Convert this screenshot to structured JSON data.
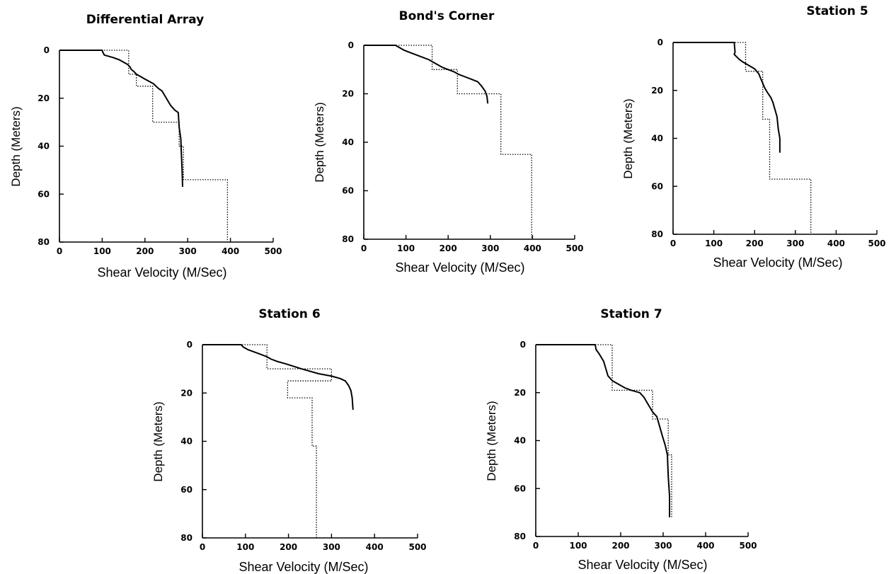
{
  "chart_data": [
    {
      "type": "line",
      "title": "Differential Array",
      "xlabel": "Shear Velocity (M/Sec)",
      "ylabel": "Depth (Meters)",
      "xlim": [
        0,
        500
      ],
      "ylim": [
        80,
        0
      ],
      "y_inverted": true,
      "xticks": [
        "0",
        "100",
        "200",
        "300",
        "400",
        "500"
      ],
      "yticks": [
        "0",
        "20",
        "40",
        "60",
        "80"
      ],
      "series": [
        {
          "style": "solid",
          "x": [
            0,
            100,
            102,
            105,
            125,
            140,
            150,
            160,
            165,
            168,
            175,
            180,
            190,
            200,
            210,
            220,
            232,
            240,
            250,
            260,
            270,
            278,
            280,
            284,
            285,
            287,
            288
          ],
          "y": [
            0,
            0,
            1,
            2,
            3,
            4,
            5,
            6,
            7,
            8,
            9,
            10,
            11,
            12,
            13,
            14,
            16,
            17,
            20,
            23,
            25,
            26,
            32,
            37,
            42,
            50,
            57
          ]
        },
        {
          "style": "dotted",
          "x": [
            0,
            162,
            162,
            180,
            180,
            218,
            218,
            280,
            280,
            290,
            290,
            393,
            393
          ],
          "y": [
            0,
            0,
            10,
            10,
            15,
            15,
            30,
            30,
            40,
            40,
            54,
            54,
            80
          ]
        }
      ]
    },
    {
      "type": "line",
      "title": "Bond's Corner",
      "xlabel": "Shear Velocity (M/Sec)",
      "ylabel": "Depth (Meters)",
      "xlim": [
        0,
        500
      ],
      "ylim": [
        80,
        0
      ],
      "y_inverted": true,
      "xticks": [
        "0",
        "100",
        "200",
        "300",
        "400",
        "500"
      ],
      "yticks": [
        "0",
        "20",
        "40",
        "60",
        "80"
      ],
      "series": [
        {
          "style": "solid",
          "x": [
            0,
            75,
            85,
            95,
            110,
            125,
            140,
            155,
            165,
            175,
            185,
            200,
            215,
            225,
            240,
            255,
            270,
            280,
            288,
            292,
            294
          ],
          "y": [
            0,
            0,
            1,
            2,
            3,
            4,
            5,
            6,
            7,
            8,
            9,
            10,
            11,
            12,
            13,
            14,
            15,
            17,
            19,
            21,
            24
          ]
        },
        {
          "style": "dotted",
          "x": [
            0,
            162,
            162,
            222,
            222,
            325,
            325,
            398,
            398
          ],
          "y": [
            0,
            0,
            10,
            10,
            20,
            20,
            45,
            45,
            80
          ]
        }
      ]
    },
    {
      "type": "line",
      "title": "Station 5",
      "xlabel": "Shear Velocity (M/Sec)",
      "ylabel": "Depth (Meters)",
      "xlim": [
        0,
        500
      ],
      "ylim": [
        80,
        0
      ],
      "y_inverted": true,
      "xticks": [
        "0",
        "100",
        "200",
        "300",
        "400",
        "500"
      ],
      "yticks": [
        "0",
        "20",
        "40",
        "60",
        "80"
      ],
      "series": [
        {
          "style": "solid",
          "x": [
            0,
            150,
            152,
            150,
            156,
            162,
            170,
            180,
            190,
            200,
            210,
            215,
            220,
            225,
            232,
            240,
            245,
            250,
            255,
            258,
            262,
            262
          ],
          "y": [
            0,
            0,
            4,
            5,
            6,
            7,
            8,
            9,
            10,
            11,
            13,
            15,
            17,
            19,
            21,
            23,
            25,
            28,
            31,
            36,
            40,
            46
          ]
        },
        {
          "style": "dotted",
          "x": [
            0,
            178,
            178,
            220,
            220,
            237,
            237,
            265,
            265,
            338,
            338
          ],
          "y": [
            0,
            0,
            12,
            12,
            32,
            32,
            57,
            57,
            57,
            57,
            80
          ]
        }
      ]
    },
    {
      "type": "line",
      "title": "Station 6",
      "xlabel": "Shear Velocity (M/Sec)",
      "ylabel": "Depth (Meters)",
      "xlim": [
        0,
        500
      ],
      "ylim": [
        80,
        0
      ],
      "y_inverted": true,
      "xticks": [
        "0",
        "100",
        "200",
        "300",
        "400",
        "500"
      ],
      "yticks": [
        "0",
        "20",
        "40",
        "60",
        "80"
      ],
      "series": [
        {
          "style": "solid",
          "x": [
            0,
            90,
            95,
            105,
            120,
            135,
            150,
            160,
            175,
            195,
            230,
            270,
            300,
            320,
            332,
            340,
            345,
            348,
            350
          ],
          "y": [
            0,
            0,
            1,
            2,
            3,
            4,
            5,
            6,
            7,
            8,
            10,
            12,
            13,
            14,
            15,
            17,
            19,
            22,
            27
          ]
        },
        {
          "style": "dotted",
          "x": [
            0,
            150,
            150,
            300,
            300,
            198,
            198,
            255,
            255,
            265,
            265
          ],
          "y": [
            0,
            0,
            10,
            10,
            15,
            15,
            22,
            22,
            42,
            42,
            80
          ]
        }
      ]
    },
    {
      "type": "line",
      "title": "Station 7",
      "xlabel": "Shear Velocity (M/Sec)",
      "ylabel": "Depth (Meters)",
      "xlim": [
        0,
        500
      ],
      "ylim": [
        80,
        0
      ],
      "y_inverted": true,
      "xticks": [
        "0",
        "100",
        "200",
        "300",
        "400",
        "500"
      ],
      "yticks": [
        "0",
        "20",
        "40",
        "60",
        "80"
      ],
      "series": [
        {
          "style": "solid",
          "x": [
            0,
            140,
            142,
            150,
            160,
            165,
            170,
            180,
            190,
            200,
            210,
            225,
            245,
            255,
            265,
            275,
            285,
            290,
            298,
            305,
            310,
            312,
            315,
            315
          ],
          "y": [
            0,
            0,
            2,
            4,
            7,
            10,
            13,
            15,
            16,
            17,
            18,
            19,
            20,
            22,
            25,
            28,
            30,
            33,
            38,
            42,
            46,
            55,
            63,
            72
          ]
        },
        {
          "style": "dotted",
          "x": [
            0,
            180,
            180,
            275,
            275,
            312,
            312,
            320,
            320
          ],
          "y": [
            0,
            0,
            19,
            19,
            31,
            31,
            46,
            46,
            72
          ]
        }
      ]
    }
  ]
}
